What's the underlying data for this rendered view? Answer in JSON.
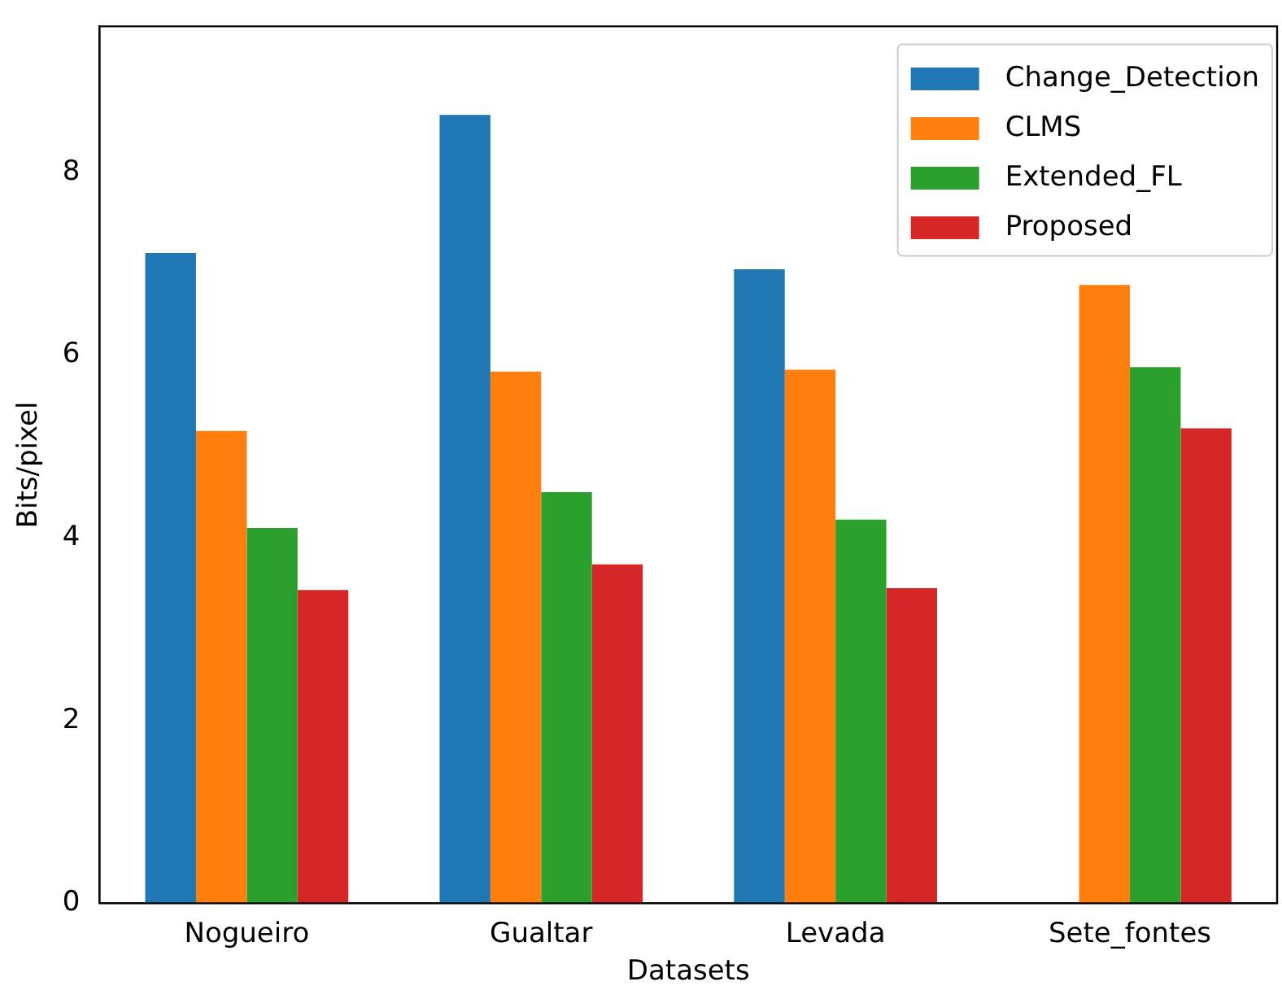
{
  "chart_data": {
    "type": "bar",
    "xlabel": "Datasets",
    "ylabel": "Bits/pixel",
    "categories": [
      "Nogueiro",
      "Gualtar",
      "Levada",
      "Sete_fontes"
    ],
    "series": [
      {
        "name": "Change_Detection",
        "color": "#1f77b4",
        "values": [
          7.12,
          8.63,
          6.94,
          null
        ]
      },
      {
        "name": "CLMS",
        "color": "#ff7f0e",
        "values": [
          5.17,
          5.82,
          5.84,
          6.77
        ]
      },
      {
        "name": "Extended_FL",
        "color": "#2ca02c",
        "values": [
          4.11,
          4.5,
          4.2,
          5.87
        ]
      },
      {
        "name": "Proposed",
        "color": "#d62728",
        "values": [
          3.43,
          3.71,
          3.45,
          5.2
        ]
      }
    ],
    "ylim": [
      0,
      9.6
    ],
    "yticks": [
      0,
      2,
      4,
      6,
      8
    ],
    "grid": false,
    "legend": "top right"
  }
}
